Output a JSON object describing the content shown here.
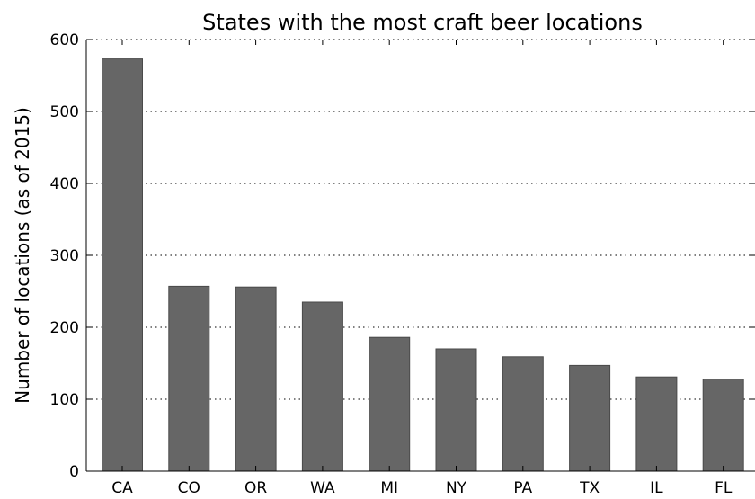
{
  "chart_data": {
    "type": "bar",
    "title": "States with the most craft beer locations",
    "xlabel": "",
    "ylabel": "Number of locations (as of 2015)",
    "categories": [
      "CA",
      "CO",
      "OR",
      "WA",
      "MI",
      "NY",
      "PA",
      "TX",
      "IL",
      "FL"
    ],
    "values": [
      573,
      257,
      256,
      235,
      186,
      170,
      159,
      147,
      131,
      128
    ],
    "ylim": [
      0,
      600
    ],
    "yticks": [
      0,
      100,
      200,
      300,
      400,
      500,
      600
    ],
    "grid": "horizontal dotted",
    "legend": "none",
    "bar_color": "#666666"
  }
}
